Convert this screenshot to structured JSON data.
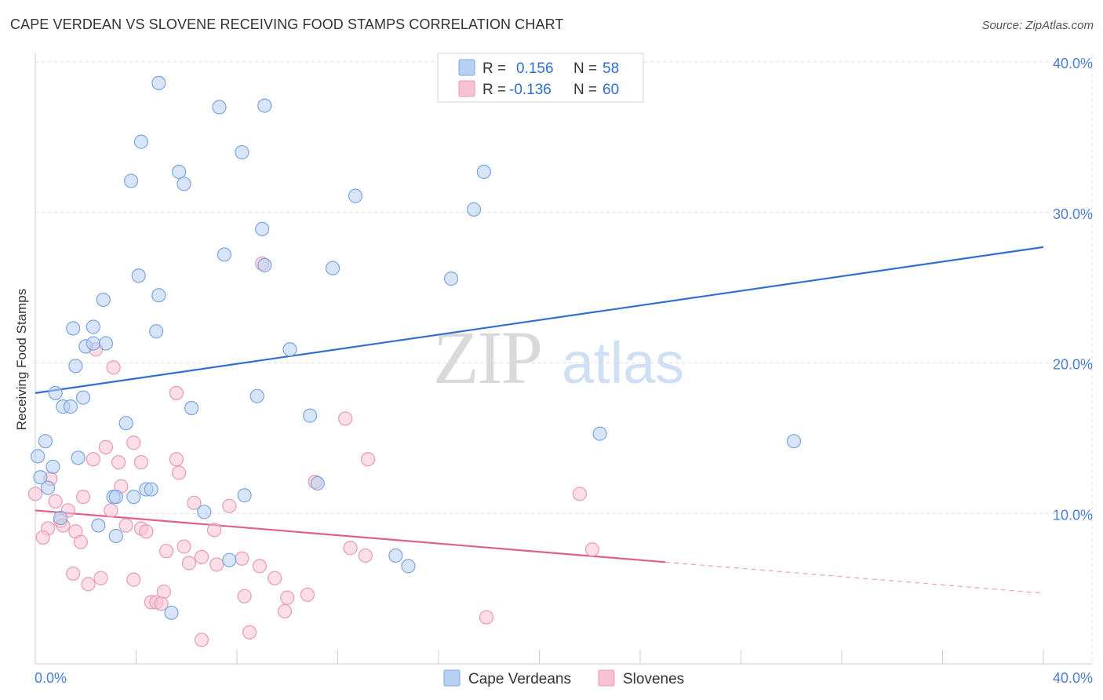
{
  "header": {
    "title": "CAPE VERDEAN VS SLOVENE RECEIVING FOOD STAMPS CORRELATION CHART",
    "source": "Source: ZipAtlas.com"
  },
  "watermark": {
    "zip": "ZIP",
    "atlas": "atlas"
  },
  "colors": {
    "blue_fill": "#b8d0f2",
    "blue_stroke": "#7aa6e0",
    "blue_line": "#2f6fd0",
    "pink_fill": "#f7c2d3",
    "pink_stroke": "#e99ab4",
    "pink_line": "#e0608a",
    "grid": "#dddddd",
    "axis_text": "#4a7fd4"
  },
  "legend": {
    "rows": [
      {
        "r_label": "R =",
        "r_value": "0.156",
        "n_label": "N =",
        "n_value": "58"
      },
      {
        "r_label": "R =",
        "r_value": "-0.136",
        "n_label": "N =",
        "n_value": "60"
      }
    ]
  },
  "bottom_legend": [
    "Cape Verdeans",
    "Slovenes"
  ],
  "chart_data": {
    "type": "scatter",
    "title": "CAPE VERDEAN VS SLOVENE RECEIVING FOOD STAMPS CORRELATION CHART",
    "xlabel": "",
    "ylabel": "Receiving Food Stamps",
    "xlim": [
      0,
      40
    ],
    "ylim": [
      0,
      40
    ],
    "x_tick_labels": [
      "0.0%",
      "40.0%"
    ],
    "y_ticks": [
      10,
      20,
      30,
      40
    ],
    "y_tick_labels": [
      "10.0%",
      "20.0%",
      "30.0%",
      "40.0%"
    ],
    "grid": true,
    "legend_position": "top-center",
    "series": [
      {
        "name": "Cape Verdeans",
        "R": 0.156,
        "N": 58,
        "trend": {
          "x0": 0,
          "y0": 18.0,
          "x1": 40,
          "y1": 27.7,
          "solid_to": 40
        },
        "points": [
          [
            4.9,
            38.6
          ],
          [
            7.3,
            37.0
          ],
          [
            9.1,
            37.1
          ],
          [
            4.2,
            34.7
          ],
          [
            8.2,
            34.0
          ],
          [
            3.8,
            32.1
          ],
          [
            5.7,
            32.7
          ],
          [
            5.9,
            31.9
          ],
          [
            12.7,
            31.1
          ],
          [
            17.8,
            32.7
          ],
          [
            17.4,
            30.2
          ],
          [
            9.0,
            28.9
          ],
          [
            7.5,
            27.2
          ],
          [
            9.1,
            26.5
          ],
          [
            11.8,
            26.3
          ],
          [
            4.1,
            25.8
          ],
          [
            16.5,
            25.6
          ],
          [
            4.9,
            24.5
          ],
          [
            2.7,
            24.2
          ],
          [
            1.5,
            22.3
          ],
          [
            2.3,
            22.4
          ],
          [
            4.8,
            22.1
          ],
          [
            2.0,
            21.1
          ],
          [
            2.3,
            21.3
          ],
          [
            2.8,
            21.3
          ],
          [
            10.1,
            20.9
          ],
          [
            1.6,
            19.8
          ],
          [
            0.8,
            18.0
          ],
          [
            1.9,
            17.7
          ],
          [
            8.8,
            17.8
          ],
          [
            1.1,
            17.1
          ],
          [
            1.4,
            17.1
          ],
          [
            6.2,
            17.0
          ],
          [
            10.9,
            16.5
          ],
          [
            3.6,
            16.0
          ],
          [
            0.4,
            14.8
          ],
          [
            22.4,
            15.3
          ],
          [
            30.1,
            14.8
          ],
          [
            0.1,
            13.8
          ],
          [
            1.7,
            13.7
          ],
          [
            0.7,
            13.1
          ],
          [
            0.2,
            12.4
          ],
          [
            0.5,
            11.7
          ],
          [
            11.2,
            12.0
          ],
          [
            4.4,
            11.6
          ],
          [
            4.6,
            11.6
          ],
          [
            3.1,
            11.1
          ],
          [
            3.2,
            11.1
          ],
          [
            3.9,
            11.1
          ],
          [
            8.3,
            11.2
          ],
          [
            6.7,
            10.1
          ],
          [
            1.0,
            9.7
          ],
          [
            2.5,
            9.2
          ],
          [
            3.2,
            8.5
          ],
          [
            7.7,
            6.9
          ],
          [
            14.3,
            7.2
          ],
          [
            14.8,
            6.5
          ],
          [
            5.4,
            3.4
          ]
        ]
      },
      {
        "name": "Slovenes",
        "R": -0.136,
        "N": 60,
        "trend": {
          "x0": 0,
          "y0": 10.2,
          "x1": 40,
          "y1": 4.7,
          "solid_to": 25
        },
        "points": [
          [
            0.6,
            12.3
          ],
          [
            9.0,
            26.6
          ],
          [
            2.4,
            20.9
          ],
          [
            3.1,
            19.7
          ],
          [
            5.6,
            18.0
          ],
          [
            12.3,
            16.3
          ],
          [
            3.9,
            14.7
          ],
          [
            2.8,
            14.4
          ],
          [
            2.3,
            13.6
          ],
          [
            3.3,
            13.4
          ],
          [
            4.2,
            13.4
          ],
          [
            5.6,
            13.6
          ],
          [
            13.2,
            13.6
          ],
          [
            5.7,
            12.7
          ],
          [
            11.1,
            12.1
          ],
          [
            0.0,
            11.3
          ],
          [
            3.4,
            11.8
          ],
          [
            1.9,
            11.1
          ],
          [
            21.6,
            11.3
          ],
          [
            0.8,
            10.8
          ],
          [
            6.3,
            10.7
          ],
          [
            7.7,
            10.5
          ],
          [
            1.3,
            10.2
          ],
          [
            3.0,
            10.2
          ],
          [
            1.0,
            9.5
          ],
          [
            1.1,
            9.2
          ],
          [
            3.6,
            9.2
          ],
          [
            4.2,
            9.0
          ],
          [
            0.5,
            9.0
          ],
          [
            4.4,
            8.8
          ],
          [
            1.6,
            8.8
          ],
          [
            7.1,
            8.9
          ],
          [
            0.3,
            8.4
          ],
          [
            1.8,
            8.1
          ],
          [
            5.9,
            7.8
          ],
          [
            12.5,
            7.7
          ],
          [
            22.1,
            7.6
          ],
          [
            5.2,
            7.5
          ],
          [
            13.1,
            7.2
          ],
          [
            6.6,
            7.1
          ],
          [
            8.2,
            7.0
          ],
          [
            6.1,
            6.7
          ],
          [
            7.2,
            6.6
          ],
          [
            8.9,
            6.5
          ],
          [
            1.5,
            6.0
          ],
          [
            2.6,
            5.7
          ],
          [
            3.9,
            5.6
          ],
          [
            9.5,
            5.7
          ],
          [
            2.1,
            5.3
          ],
          [
            5.1,
            4.8
          ],
          [
            8.3,
            4.5
          ],
          [
            10.0,
            4.4
          ],
          [
            10.8,
            4.6
          ],
          [
            4.6,
            4.1
          ],
          [
            4.8,
            4.1
          ],
          [
            5.0,
            4.0
          ],
          [
            9.9,
            3.5
          ],
          [
            17.9,
            3.1
          ],
          [
            8.5,
            2.1
          ],
          [
            6.6,
            1.6
          ]
        ]
      }
    ]
  }
}
